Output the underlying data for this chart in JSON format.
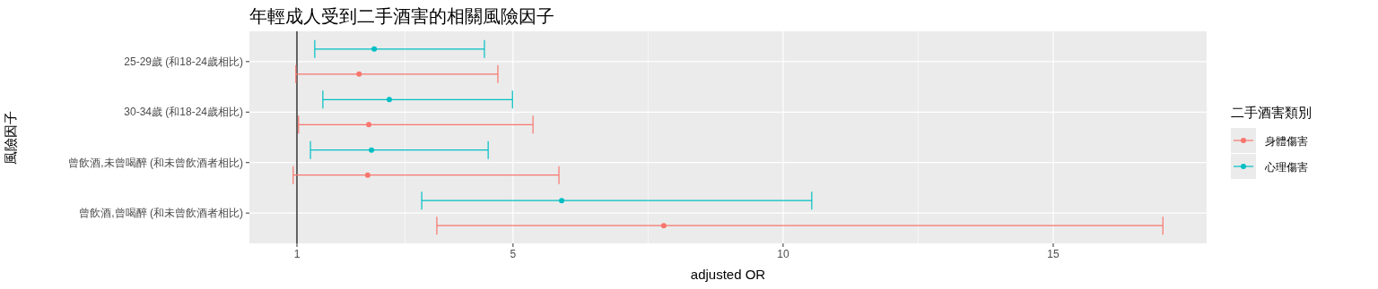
{
  "chart_data": {
    "type": "scatter",
    "orientation": "horizontal",
    "title": "年輕成人受到二手酒害的相關風險因子",
    "xlabel": "adjusted OR",
    "ylabel": "風險因子",
    "legend_title": "二手酒害類別",
    "categories": [
      "25-29歲 (和18-24歲相比)",
      "30-34歲 (和18-24歲相比)",
      "曾飲酒,未曾喝醉 (和未曾飲酒者相比)",
      "曾飲酒,曾喝醉 (和未曾飲酒者相比)"
    ],
    "series": [
      {
        "name": "身體傷害",
        "color": "#f8766d",
        "values": [
          2.15,
          2.33,
          2.31,
          7.79
        ],
        "errors": [
          [
            0.98,
            4.72
          ],
          [
            1.03,
            5.37
          ],
          [
            0.93,
            5.85
          ],
          [
            3.59,
            17.03
          ]
        ]
      },
      {
        "name": "心理傷害",
        "color": "#00bfc4",
        "values": [
          2.43,
          2.71,
          2.38,
          5.9
        ],
        "errors": [
          [
            1.33,
            4.47
          ],
          [
            1.48,
            4.99
          ],
          [
            1.25,
            4.54
          ],
          [
            3.31,
            10.53
          ]
        ]
      }
    ],
    "xlim": [
      0.12,
      17.84
    ],
    "xticks": [
      1,
      5,
      10,
      15
    ],
    "ref_lines": [
      {
        "axis": "x",
        "value": 1,
        "color": "#000000"
      }
    ],
    "grid": true,
    "legend": "right",
    "marker": "circle"
  }
}
